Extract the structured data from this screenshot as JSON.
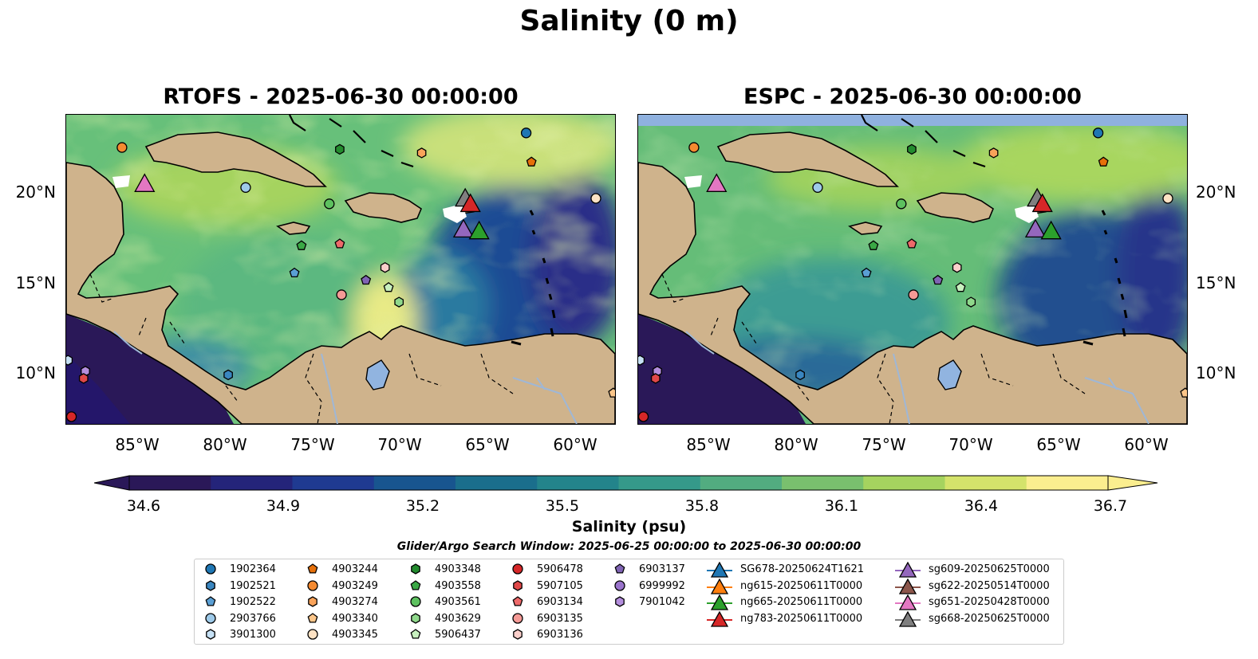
{
  "figure": {
    "title": "Salinity (0 m)",
    "panels": [
      {
        "key": "rtofs",
        "title": "RTOFS - 2025-06-30 00:00:00"
      },
      {
        "key": "espc",
        "title": "ESPC - 2025-06-30 00:00:00"
      }
    ],
    "lat_ticks": [
      "20°N",
      "15°N",
      "10°N"
    ],
    "lon_ticks": [
      "85°W",
      "80°W",
      "75°W",
      "70°W",
      "65°W",
      "60°W"
    ],
    "extent": {
      "lon_min": -90,
      "lon_max": -58.5,
      "lat_min": 7,
      "lat_max": 24
    }
  },
  "colorbar": {
    "label": "Salinity (psu)",
    "ticks": [
      "34.6",
      "34.9",
      "35.2",
      "35.5",
      "35.8",
      "36.1",
      "36.4",
      "36.7"
    ],
    "min": 34.6,
    "max": 36.7,
    "colormap": [
      "#2a1858",
      "#24247a",
      "#1f3a91",
      "#18558f",
      "#1a6e8c",
      "#23848b",
      "#35998a",
      "#52ac80",
      "#79c06e",
      "#a5d35f",
      "#d4e36b",
      "#fbee8f"
    ]
  },
  "search_window": "Glider/Argo Search Window: 2025-06-25 00:00:00 to 2025-06-30 00:00:00",
  "legend": {
    "argo": [
      {
        "id": "1902364",
        "shape": "circle",
        "color": "#1f77b4"
      },
      {
        "id": "1902521",
        "shape": "hexagon",
        "color": "#3a86c0"
      },
      {
        "id": "1902522",
        "shape": "pentagon",
        "color": "#5a9fd4"
      },
      {
        "id": "2903766",
        "shape": "circle",
        "color": "#9ecae9"
      },
      {
        "id": "3901300",
        "shape": "hexagon",
        "color": "#c6e1f5"
      },
      {
        "id": "4903244",
        "shape": "pentagon",
        "color": "#e6700a"
      },
      {
        "id": "4903249",
        "shape": "circle",
        "color": "#f58a30"
      },
      {
        "id": "4903274",
        "shape": "hexagon",
        "color": "#f9a35a"
      },
      {
        "id": "4903340",
        "shape": "pentagon",
        "color": "#fcc68a"
      },
      {
        "id": "4903345",
        "shape": "circle",
        "color": "#fde2c4"
      },
      {
        "id": "4903348",
        "shape": "hexagon",
        "color": "#238b2e"
      },
      {
        "id": "4903558",
        "shape": "pentagon",
        "color": "#3aa845"
      },
      {
        "id": "4903561",
        "shape": "circle",
        "color": "#5dc15f"
      },
      {
        "id": "4903629",
        "shape": "hexagon",
        "color": "#8fd88b"
      },
      {
        "id": "5906437",
        "shape": "pentagon",
        "color": "#c8f0bf"
      },
      {
        "id": "5906478",
        "shape": "circle",
        "color": "#d62728"
      },
      {
        "id": "5907105",
        "shape": "hexagon",
        "color": "#e04848"
      },
      {
        "id": "6903134",
        "shape": "pentagon",
        "color": "#ee6a6a"
      },
      {
        "id": "6903135",
        "shape": "circle",
        "color": "#f59a96"
      },
      {
        "id": "6903136",
        "shape": "hexagon",
        "color": "#fbcfcb"
      },
      {
        "id": "6903137",
        "shape": "pentagon",
        "color": "#8064b4"
      },
      {
        "id": "6999992",
        "shape": "circle",
        "color": "#9a74cc"
      },
      {
        "id": "7901042",
        "shape": "hexagon",
        "color": "#b48edd"
      }
    ],
    "gliders": [
      {
        "id": "SG678-20250624T1621",
        "color": "#1f77b4"
      },
      {
        "id": "ng615-20250611T0000",
        "color": "#ff7f0e"
      },
      {
        "id": "ng665-20250611T0000",
        "color": "#2ca02c"
      },
      {
        "id": "ng783-20250611T0000",
        "color": "#d62728"
      },
      {
        "id": "sg609-20250625T0000",
        "color": "#9467bd"
      },
      {
        "id": "sg622-20250514T0000",
        "color": "#8c564b"
      },
      {
        "id": "sg651-20250428T0000",
        "color": "#e377c2"
      },
      {
        "id": "sg668-20250625T0000",
        "color": "#7f7f7f"
      }
    ]
  },
  "observations": {
    "argo_positions": [
      {
        "id": "1902364",
        "lon": -63.6,
        "lat": 23.0
      },
      {
        "id": "4903244",
        "lon": -63.3,
        "lat": 21.4
      },
      {
        "id": "4903249",
        "lon": -86.8,
        "lat": 22.2
      },
      {
        "id": "4903274",
        "lon": -69.6,
        "lat": 21.9
      },
      {
        "id": "4903348",
        "lon": -74.3,
        "lat": 22.1
      },
      {
        "id": "2903766",
        "lon": -79.7,
        "lat": 20.0
      },
      {
        "id": "4903345",
        "lon": -59.6,
        "lat": 19.4
      },
      {
        "id": "4903561",
        "lon": -74.9,
        "lat": 19.1
      },
      {
        "id": "4903558",
        "lon": -76.5,
        "lat": 16.8
      },
      {
        "id": "6903134",
        "lon": -74.3,
        "lat": 16.9
      },
      {
        "id": "1902522",
        "lon": -76.9,
        "lat": 15.3
      },
      {
        "id": "6903137",
        "lon": -72.8,
        "lat": 14.9
      },
      {
        "id": "6903136",
        "lon": -71.7,
        "lat": 15.6
      },
      {
        "id": "5906437",
        "lon": -71.5,
        "lat": 14.5
      },
      {
        "id": "6903135",
        "lon": -74.2,
        "lat": 14.1
      },
      {
        "id": "4903629",
        "lon": -70.9,
        "lat": 13.7
      },
      {
        "id": "1902521",
        "lon": -80.7,
        "lat": 9.7
      },
      {
        "id": "3901300",
        "lon": -89.9,
        "lat": 10.5
      },
      {
        "id": "7901042",
        "lon": -88.9,
        "lat": 9.9
      },
      {
        "id": "5907105",
        "lon": -89.0,
        "lat": 9.5
      },
      {
        "id": "5906478",
        "lon": -89.7,
        "lat": 7.4
      },
      {
        "id": "4903340",
        "lon": -58.6,
        "lat": 8.7
      }
    ],
    "glider_positions": [
      {
        "id": "sg651-20250428T0000",
        "lon": -85.5,
        "lat": 20.2
      },
      {
        "id": "sg668-20250625T0000",
        "lon": -67.1,
        "lat": 19.4
      },
      {
        "id": "ng783-20250611T0000",
        "lon": -66.8,
        "lat": 19.1
      },
      {
        "id": "sg609-20250625T0000",
        "lon": -67.2,
        "lat": 17.7
      },
      {
        "id": "ng665-20250611T0000",
        "lon": -66.3,
        "lat": 17.6
      }
    ]
  }
}
